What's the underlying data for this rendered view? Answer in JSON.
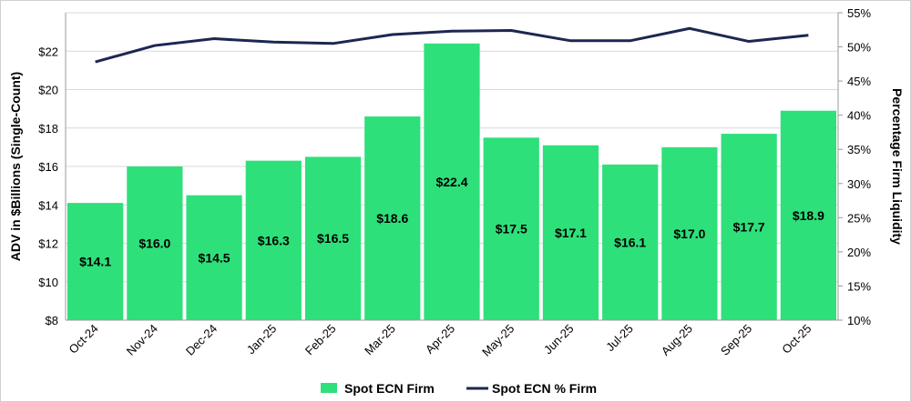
{
  "chart_data": {
    "type": "bar+line",
    "categories": [
      "Oct-24",
      "Nov-24",
      "Dec-24",
      "Jan-25",
      "Feb-25",
      "Mar-25",
      "Apr-25",
      "May-25",
      "Jun-25",
      "Jul-25",
      "Aug-25",
      "Sep-25",
      "Oct-25"
    ],
    "series": [
      {
        "name": "Spot ECN Firm",
        "type": "bar",
        "axis": "left",
        "color": "#2EE07A",
        "values": [
          14.1,
          16.0,
          14.5,
          16.3,
          16.5,
          18.6,
          22.4,
          17.5,
          17.1,
          16.1,
          17.0,
          17.7,
          18.9
        ],
        "labels": [
          "$14.1",
          "$16.0",
          "$14.5",
          "$16.3",
          "$16.5",
          "$18.6",
          "$22.4",
          "$17.5",
          "$17.1",
          "$16.1",
          "$17.0",
          "$17.7",
          "$18.9"
        ]
      },
      {
        "name": "Spot ECN % Firm",
        "type": "line",
        "axis": "right",
        "color": "#1C2752",
        "values": [
          47.8,
          50.2,
          51.2,
          50.7,
          50.5,
          51.8,
          52.3,
          52.4,
          50.9,
          50.9,
          52.7,
          50.8,
          51.7
        ]
      }
    ],
    "ylabel": "ADV in $Billions  (Single-Count)",
    "y2label": "Percentage Firm Liquidity",
    "ylim": [
      8,
      24
    ],
    "y2lim": [
      10,
      55
    ],
    "yticks": [
      "$8",
      "$10",
      "$12",
      "$14",
      "$16",
      "$18",
      "$20",
      "$22"
    ],
    "ytick_values": [
      8,
      10,
      12,
      14,
      16,
      18,
      20,
      22
    ],
    "y2ticks": [
      "10%",
      "15%",
      "20%",
      "25%",
      "30%",
      "35%",
      "40%",
      "45%",
      "50%",
      "55%"
    ],
    "y2tick_values": [
      10,
      15,
      20,
      25,
      30,
      35,
      40,
      45,
      50,
      55
    ],
    "grid": true,
    "legend_position": "bottom"
  }
}
